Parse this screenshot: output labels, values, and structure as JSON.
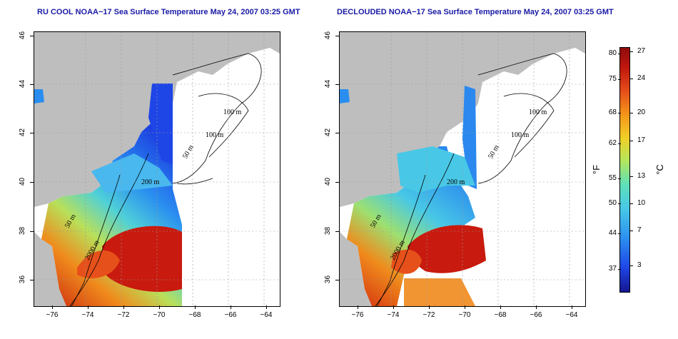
{
  "left_panel": {
    "title": "RU COOL NOAA−17 Sea Surface Temperature May 24, 2007 03:25 GMT",
    "x_ticks": [
      "−76",
      "−74",
      "−72",
      "−70",
      "−68",
      "−66",
      "−64"
    ],
    "y_ticks": [
      "46",
      "44",
      "42",
      "40",
      "38",
      "36"
    ]
  },
  "right_panel": {
    "title": "DECLOUDED NOAA−17 Sea Surface Temperature May 24, 2007 03:25 GMT",
    "x_ticks": [
      "−76",
      "−74",
      "−72",
      "−70",
      "−68",
      "−66",
      "−64"
    ],
    "y_ticks": [
      "46",
      "44",
      "42",
      "40",
      "38",
      "36"
    ]
  },
  "contour_labels": {
    "m100a": "100 m",
    "m100b": "100 m",
    "m50a": "50 m",
    "m200": "200 m",
    "m50b": "50 m",
    "m2000": "2000 m"
  },
  "colorbar": {
    "fahrenheit_unit": "°F",
    "celsius_unit": "°C",
    "fahrenheit_ticks": [
      "80",
      "75",
      "68",
      "62",
      "55",
      "50",
      "44",
      "37"
    ],
    "celsius_ticks": [
      "27",
      "24",
      "20",
      "17",
      "13",
      "10",
      "7",
      "3"
    ]
  },
  "colors": {
    "land": "#bebebe",
    "title": "#1a1aa6",
    "cold": "#1e46e6",
    "warm": "#d81e10"
  }
}
